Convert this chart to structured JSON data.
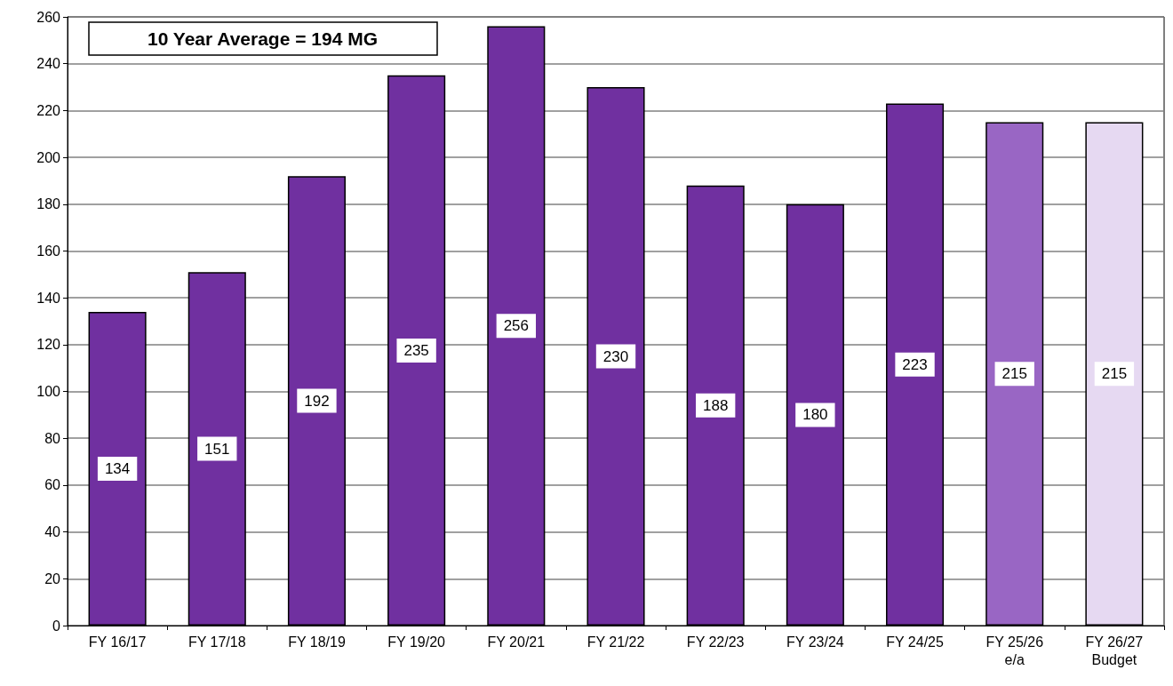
{
  "chart_data": {
    "type": "bar",
    "categories": [
      "FY 16/17",
      "FY 17/18",
      "FY 18/19",
      "FY 19/20",
      "FY 20/21",
      "FY 21/22",
      "FY 22/23",
      "FY 23/24",
      "FY 24/25",
      "FY 25/26\ne/a",
      "FY 26/27\nBudget"
    ],
    "values": [
      134,
      151,
      192,
      235,
      256,
      230,
      188,
      180,
      223,
      215,
      215
    ],
    "colors": [
      "#7030a0",
      "#7030a0",
      "#7030a0",
      "#7030a0",
      "#7030a0",
      "#7030a0",
      "#7030a0",
      "#7030a0",
      "#7030a0",
      "#9966c4",
      "#e6d9f2"
    ],
    "ylim": [
      0,
      260
    ],
    "yticks": [
      0,
      20,
      40,
      60,
      80,
      100,
      120,
      140,
      160,
      180,
      200,
      220,
      240,
      260
    ],
    "grid": "y",
    "data_labels": true,
    "annotations": [
      "10 Year Average = 194 MG"
    ]
  }
}
